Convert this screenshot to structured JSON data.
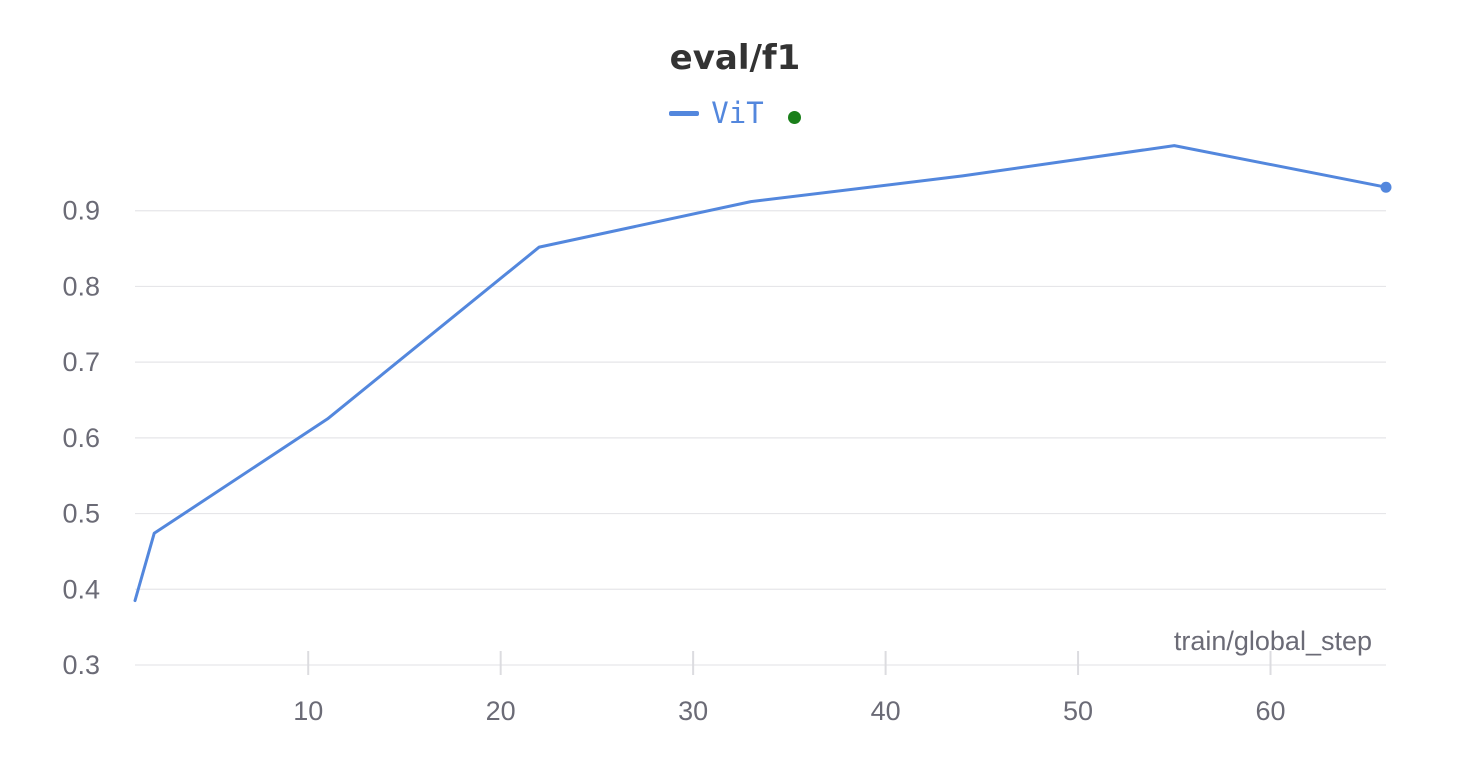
{
  "chart_data": {
    "type": "line",
    "title": "eval/f1",
    "xlabel": "train/global_step",
    "ylabel": "",
    "xlim": [
      1,
      66
    ],
    "ylim": [
      0.3,
      1.0
    ],
    "x_ticks": [
      10,
      20,
      30,
      40,
      50,
      60
    ],
    "y_ticks": [
      0.3,
      0.4,
      0.5,
      0.6,
      0.7,
      0.8,
      0.9
    ],
    "grid": true,
    "legend_position": "top-center",
    "series": [
      {
        "name": "ViT",
        "color": "#5387dd",
        "x": [
          1,
          2,
          11,
          22,
          33,
          44,
          55,
          66
        ],
        "y": [
          0.385,
          0.474,
          0.625,
          0.852,
          0.912,
          0.946,
          0.986,
          0.931
        ]
      }
    ],
    "status_color": "#1a7f1a"
  }
}
